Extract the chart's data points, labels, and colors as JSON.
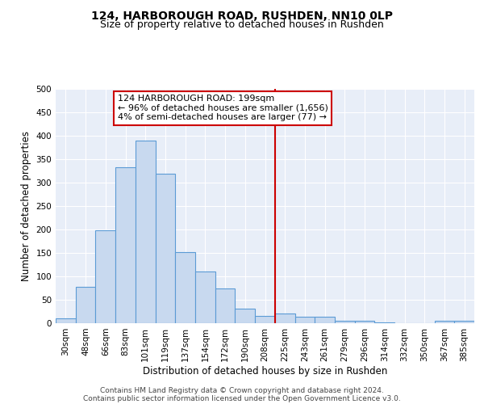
{
  "title": "124, HARBOROUGH ROAD, RUSHDEN, NN10 0LP",
  "subtitle": "Size of property relative to detached houses in Rushden",
  "xlabel": "Distribution of detached houses by size in Rushden",
  "ylabel": "Number of detached properties",
  "categories": [
    "30sqm",
    "48sqm",
    "66sqm",
    "83sqm",
    "101sqm",
    "119sqm",
    "137sqm",
    "154sqm",
    "172sqm",
    "190sqm",
    "208sqm",
    "225sqm",
    "243sqm",
    "261sqm",
    "279sqm",
    "296sqm",
    "314sqm",
    "332sqm",
    "350sqm",
    "367sqm",
    "385sqm"
  ],
  "values": [
    10,
    78,
    198,
    333,
    390,
    319,
    151,
    110,
    74,
    31,
    16,
    20,
    13,
    13,
    6,
    5,
    1,
    0,
    0,
    5,
    5
  ],
  "bar_color": "#c8d9ef",
  "bar_edge_color": "#5b9bd5",
  "background_color": "#e8eef8",
  "grid_color": "#ffffff",
  "vline_x": 10.5,
  "vline_color": "#cc0000",
  "annotation_text": "124 HARBOROUGH ROAD: 199sqm\n← 96% of detached houses are smaller (1,656)\n4% of semi-detached houses are larger (77) →",
  "annotation_box_color": "#cc0000",
  "ylim": [
    0,
    500
  ],
  "yticks": [
    0,
    50,
    100,
    150,
    200,
    250,
    300,
    350,
    400,
    450,
    500
  ],
  "footer_line1": "Contains HM Land Registry data © Crown copyright and database right 2024.",
  "footer_line2": "Contains public sector information licensed under the Open Government Licence v3.0.",
  "title_fontsize": 10,
  "subtitle_fontsize": 9,
  "xlabel_fontsize": 8.5,
  "ylabel_fontsize": 8.5,
  "tick_fontsize": 7.5,
  "annotation_fontsize": 8,
  "footer_fontsize": 6.5
}
